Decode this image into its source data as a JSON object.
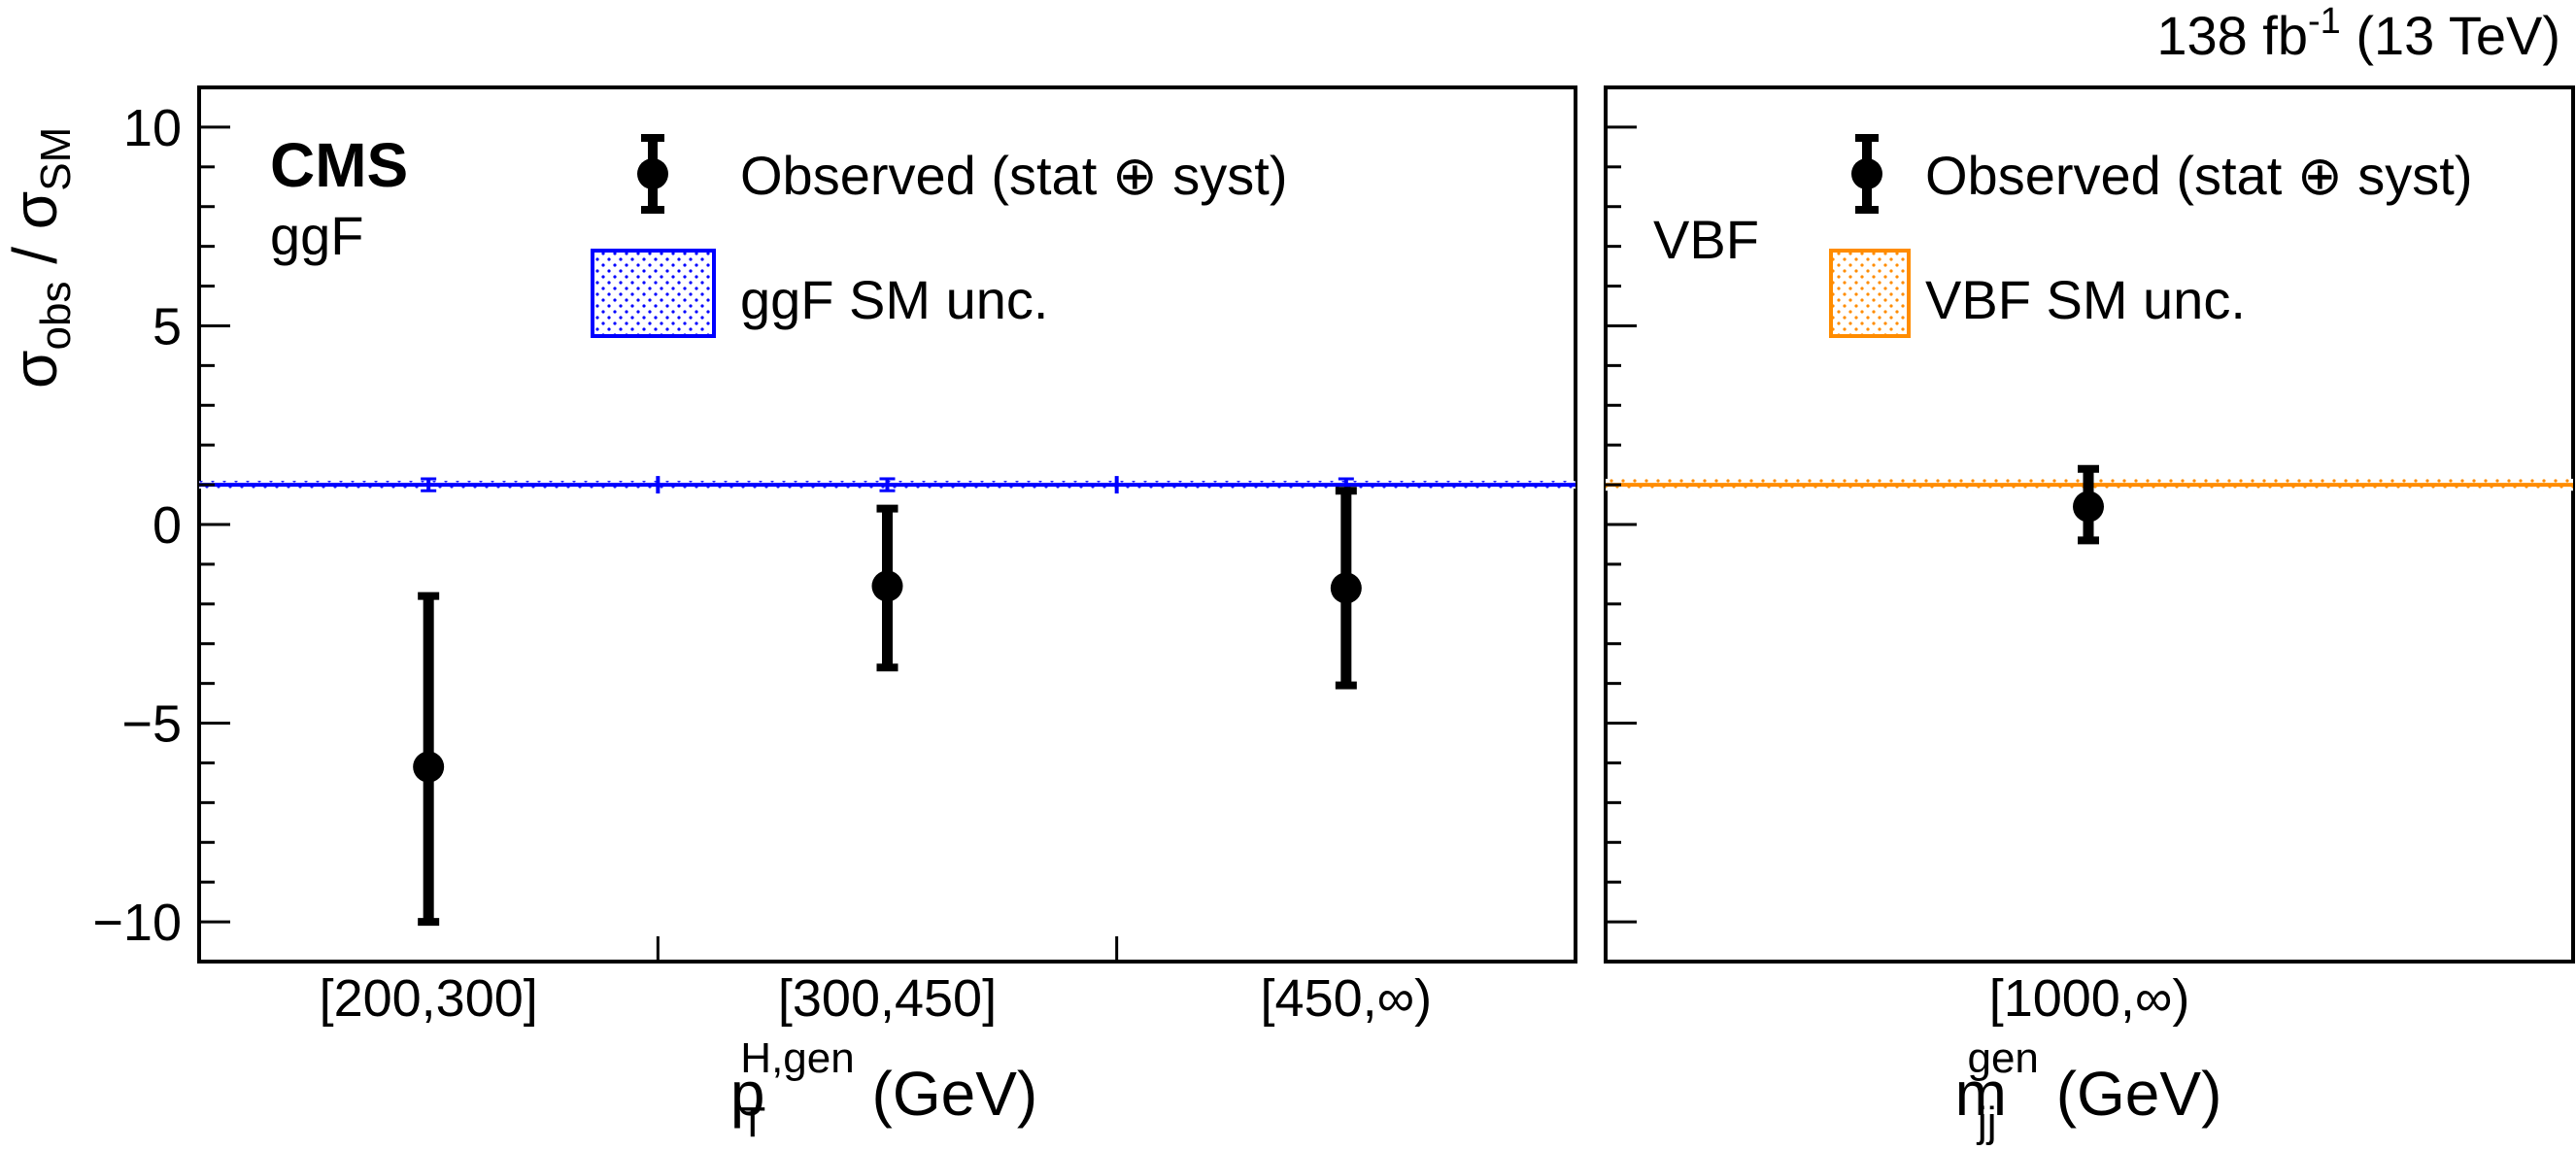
{
  "lumi_label": {
    "main": "138 fb",
    "sup": "-1",
    "rest": " (13 TeV)"
  },
  "ylabel": {
    "sym1": "σ",
    "sub1": "obs",
    "sep": " / ",
    "sym2": "σ",
    "sub2": "SM"
  },
  "colors": {
    "ggf": "#0000ff",
    "vbf": "#ff8c00",
    "observed": "#000000"
  },
  "chart_data": [
    {
      "type": "scatter",
      "panel": "ggF",
      "experiment_label": "CMS",
      "process_label": "ggF",
      "xlabel": {
        "main": "p",
        "sub": "T",
        "sup": "H,gen",
        "units": " (GeV)"
      },
      "ylim": [
        -11,
        11
      ],
      "yticks": [
        -10,
        -5,
        0,
        5,
        10
      ],
      "categories": [
        "[200,300]",
        "[300,450]",
        "[450,∞)"
      ],
      "observed": {
        "name": "Observed (stat ⊕ syst)",
        "values": [
          -6.1,
          -1.55,
          -1.6
        ],
        "err_down": [
          3.9,
          2.05,
          2.45
        ],
        "err_up": [
          4.3,
          1.95,
          2.45
        ]
      },
      "sm": {
        "name": "ggF SM unc.",
        "value": 1.0,
        "unc_band": [
          0.9,
          1.1
        ],
        "point_err": [
          0.15,
          0.15,
          0.15
        ]
      },
      "legend_position": "top"
    },
    {
      "type": "scatter",
      "panel": "VBF",
      "process_label": "VBF",
      "xlabel": {
        "main": "m",
        "sub": "jj",
        "sup": "gen",
        "units": " (GeV)"
      },
      "ylim": [
        -11,
        11
      ],
      "categories": [
        "[1000,∞)"
      ],
      "observed": {
        "name": "Observed (stat ⊕ syst)",
        "values": [
          0.45
        ],
        "err_down": [
          0.85
        ],
        "err_up": [
          0.95
        ]
      },
      "sm": {
        "name": "VBF SM unc.",
        "value": 1.0,
        "unc_band": [
          0.85,
          1.15
        ]
      },
      "legend_position": "top"
    }
  ]
}
